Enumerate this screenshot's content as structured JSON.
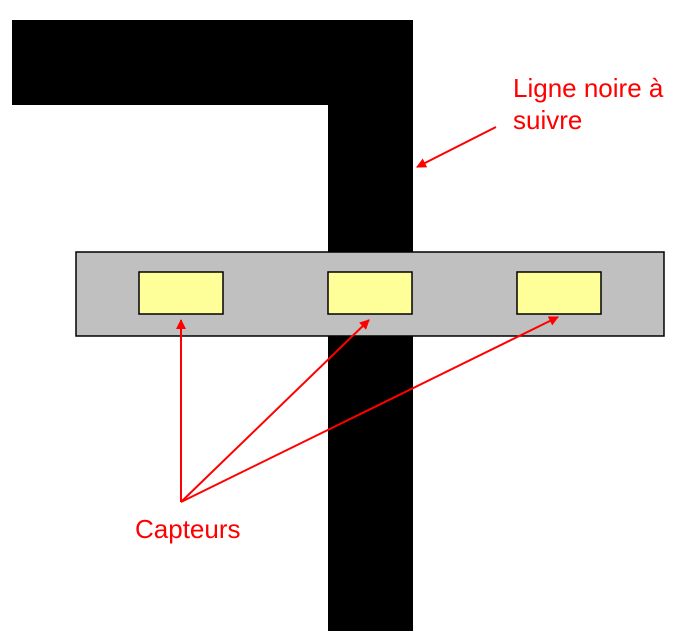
{
  "annotations": {
    "line_label_line1": "Ligne noire à",
    "line_label_line2": "suivre",
    "sensors_label": "Capteurs"
  },
  "colors": {
    "track": "#000000",
    "robot_body": "#c0c0c0",
    "sensor": "#ffff99",
    "annotation": "#ff0000",
    "outline": "#000000"
  },
  "sensors": [
    {
      "name": "sensor-left"
    },
    {
      "name": "sensor-center"
    },
    {
      "name": "sensor-right"
    }
  ]
}
